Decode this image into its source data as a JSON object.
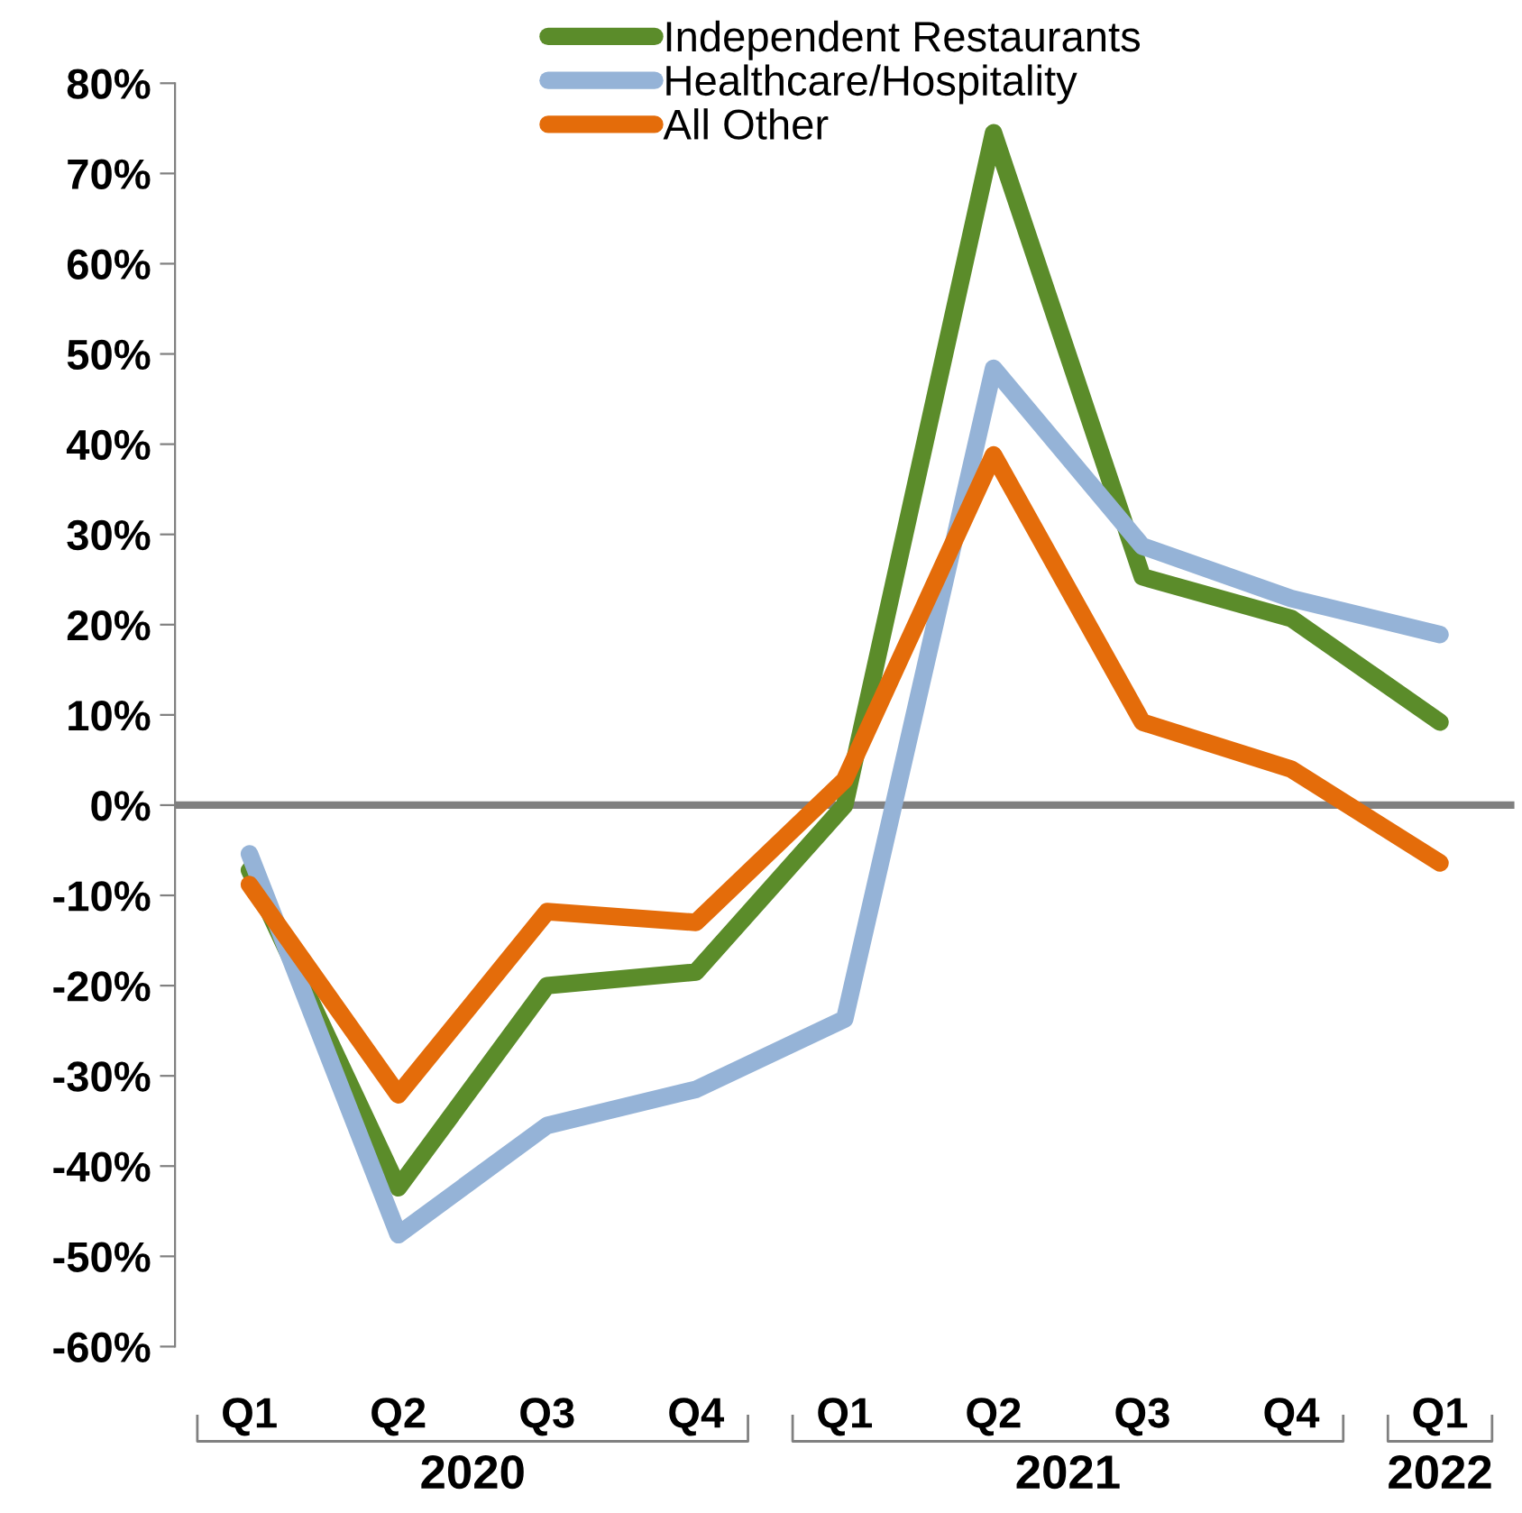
{
  "chart_data": {
    "type": "line",
    "categories": [
      "Q1",
      "Q2",
      "Q3",
      "Q4",
      "Q1",
      "Q2",
      "Q3",
      "Q4",
      "Q1"
    ],
    "series": [
      {
        "name": "Independent Restaurants",
        "color": "#5b8c2a",
        "values": [
          -7.2,
          -42.4,
          -20,
          -18.5,
          0,
          74.5,
          25.3,
          20.7,
          9.2
        ]
      },
      {
        "name": "Healthcare/Hospitality",
        "color": "#95b3d7",
        "values": [
          -5.4,
          -47.6,
          -35.5,
          -31.5,
          -23.7,
          48.4,
          28.7,
          22.9,
          18.9
        ]
      },
      {
        "name": "All Other",
        "color": "#e46c0a",
        "values": [
          -8.8,
          -32.1,
          -11.8,
          -13,
          2.8,
          38.8,
          9.2,
          4,
          -6.4
        ]
      }
    ],
    "ylim": [
      -60,
      80
    ],
    "yticks": [
      {
        "value": -60,
        "label": "-60%"
      },
      {
        "value": -50,
        "label": "-50%"
      },
      {
        "value": -40,
        "label": "-40%"
      },
      {
        "value": -30,
        "label": "-30%"
      },
      {
        "value": -20,
        "label": "-20%"
      },
      {
        "value": -10,
        "label": "-10%"
      },
      {
        "value": 0,
        "label": "0%"
      },
      {
        "value": 10,
        "label": "10%"
      },
      {
        "value": 20,
        "label": "20%"
      },
      {
        "value": 30,
        "label": "30%"
      },
      {
        "value": 40,
        "label": "40%"
      },
      {
        "value": 50,
        "label": "50%"
      },
      {
        "value": 60,
        "label": "60%"
      },
      {
        "value": 70,
        "label": "70%"
      },
      {
        "value": 80,
        "label": "80%"
      }
    ],
    "ref_lines": [
      {
        "axis": "y",
        "value": 0,
        "color": "#808080"
      }
    ],
    "annotations": [
      "2020",
      "2021",
      "2022"
    ],
    "legend": "top",
    "grid": false,
    "marker": "none",
    "line_style": "solid"
  }
}
